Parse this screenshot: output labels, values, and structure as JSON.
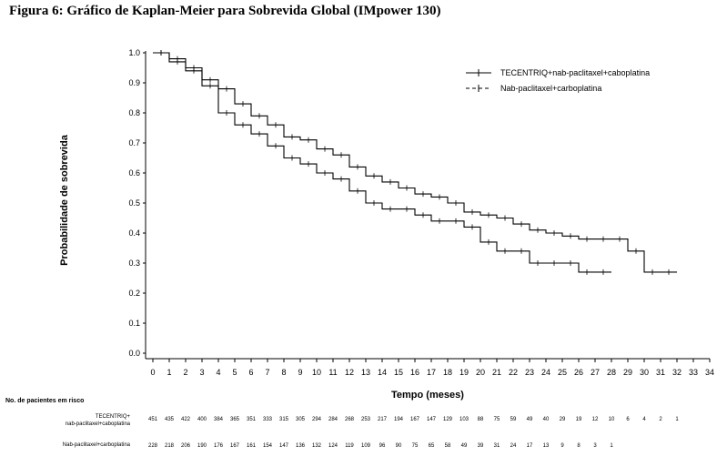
{
  "figure_title": "Figura 6: Gráfico de Kaplan-Meier para Sobrevida Global (IMpower 130)",
  "chart_data": {
    "type": "line",
    "title": "Figura 6: Gráfico de Kaplan-Meier para Sobrevida Global (IMpower 130)",
    "xlabel": "Tempo (meses)",
    "ylabel": "Probabilidade de sobrevida",
    "xlim": [
      0,
      34
    ],
    "ylim": [
      0,
      1.0
    ],
    "x_ticks": [
      0,
      1,
      2,
      3,
      4,
      5,
      6,
      7,
      8,
      9,
      10,
      11,
      12,
      13,
      14,
      15,
      16,
      17,
      18,
      19,
      20,
      21,
      22,
      23,
      24,
      25,
      26,
      27,
      28,
      29,
      30,
      31,
      32,
      33,
      34
    ],
    "y_ticks": [
      "0.0",
      "0.1",
      "0.2",
      "0.3",
      "0.4",
      "0.5",
      "0.6",
      "0.7",
      "0.8",
      "0.9",
      "1.0"
    ],
    "legend_position": "top-right",
    "series": [
      {
        "name": "TECENTRIQ+nab-paclitaxel+caboplatina",
        "style": "solid",
        "x": [
          0,
          1,
          2,
          3,
          4,
          5,
          6,
          7,
          8,
          9,
          10,
          11,
          12,
          13,
          14,
          15,
          16,
          17,
          18,
          19,
          20,
          21,
          22,
          23,
          24,
          25,
          26,
          27,
          28,
          29,
          30,
          31,
          32
        ],
        "y": [
          1.0,
          0.98,
          0.95,
          0.91,
          0.88,
          0.83,
          0.79,
          0.76,
          0.72,
          0.71,
          0.68,
          0.66,
          0.62,
          0.59,
          0.57,
          0.55,
          0.53,
          0.52,
          0.5,
          0.47,
          0.46,
          0.45,
          0.43,
          0.41,
          0.4,
          0.39,
          0.38,
          0.38,
          0.38,
          0.34,
          0.27,
          0.27,
          0.27
        ]
      },
      {
        "name": "Nab-paclitaxel+carboplatina",
        "style": "dashed",
        "x": [
          0,
          1,
          2,
          3,
          4,
          5,
          6,
          7,
          8,
          9,
          10,
          11,
          12,
          13,
          14,
          15,
          16,
          17,
          18,
          19,
          20,
          21,
          22,
          23,
          24,
          25,
          26,
          27,
          28
        ],
        "y": [
          1.0,
          0.97,
          0.94,
          0.89,
          0.8,
          0.76,
          0.73,
          0.69,
          0.65,
          0.63,
          0.6,
          0.58,
          0.54,
          0.5,
          0.48,
          0.48,
          0.46,
          0.44,
          0.44,
          0.42,
          0.37,
          0.34,
          0.34,
          0.3,
          0.3,
          0.3,
          0.27,
          0.27,
          0.27
        ]
      }
    ],
    "risk_table": {
      "title": "No. de pacientes em risco",
      "rows": [
        {
          "label_line1": "TECENTRIQ+",
          "label_line2": "nab-paclitaxel+caboplatina",
          "values": [
            "451",
            "435",
            "422",
            "400",
            "384",
            "365",
            "351",
            "333",
            "315",
            "305",
            "294",
            "284",
            "268",
            "253",
            "217",
            "194",
            "167",
            "147",
            "129",
            "103",
            "88",
            "75",
            "59",
            "49",
            "40",
            "29",
            "19",
            "12",
            "10",
            "6",
            "4",
            "2",
            "1"
          ]
        },
        {
          "label_line1": "Nab-paclitaxel+carboplatina",
          "values": [
            "228",
            "218",
            "206",
            "190",
            "176",
            "167",
            "161",
            "154",
            "147",
            "136",
            "132",
            "124",
            "119",
            "109",
            "96",
            "90",
            "75",
            "65",
            "58",
            "49",
            "39",
            "31",
            "24",
            "17",
            "13",
            "9",
            "8",
            "3",
            "1"
          ]
        }
      ]
    }
  }
}
